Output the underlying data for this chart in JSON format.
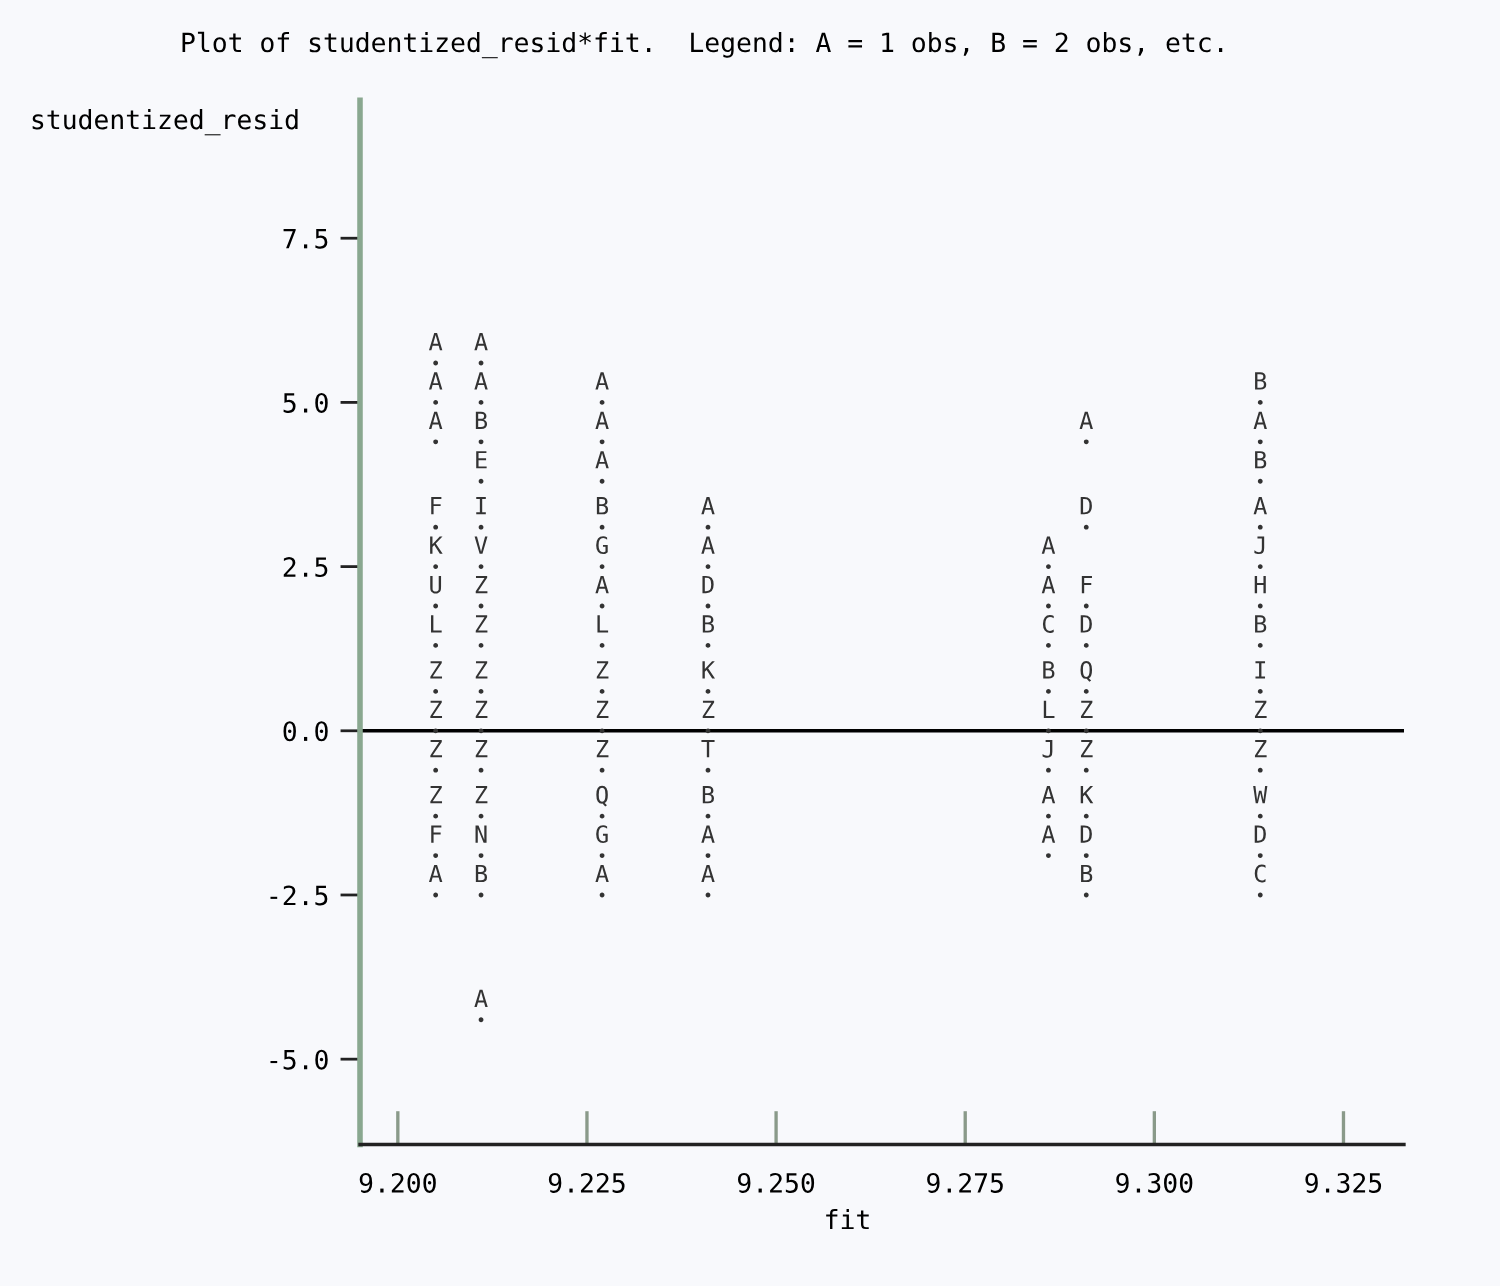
{
  "chart_data": {
    "type": "scatter",
    "title": "Plot of studentized_resid*fit.  Legend: A = 1 obs, B = 2 obs, etc.",
    "xlabel": "fit",
    "ylabel": "studentized_resid",
    "series": [
      {
        "color": "#333333",
        "x": [
          9.205,
          9.205,
          9.205,
          9.205,
          9.205,
          9.205,
          9.205,
          9.205,
          9.205,
          9.205,
          9.205,
          9.205,
          9.205,
          9.211,
          9.211,
          9.211,
          9.211,
          9.211,
          9.211,
          9.211,
          9.211,
          9.211,
          9.211,
          9.211,
          9.211,
          9.211,
          9.211,
          9.211,
          9.227,
          9.227,
          9.227,
          9.227,
          9.227,
          9.227,
          9.227,
          9.227,
          9.227,
          9.227,
          9.227,
          9.227,
          9.227,
          9.241,
          9.241,
          9.241,
          9.241,
          9.241,
          9.241,
          9.241,
          9.241,
          9.241,
          9.241,
          9.286,
          9.286,
          9.286,
          9.286,
          9.286,
          9.286,
          9.286,
          9.286,
          9.291,
          9.291,
          9.291,
          9.291,
          9.291,
          9.291,
          9.291,
          9.291,
          9.291,
          9.291,
          9.314,
          9.314,
          9.314,
          9.314,
          9.314,
          9.314,
          9.314,
          9.314,
          9.314,
          9.314,
          9.314,
          9.314,
          9.314
        ],
        "values": [
          5.6,
          5.0,
          4.4,
          3.1,
          2.5,
          1.9,
          1.3,
          0.6,
          0,
          -0.6,
          -1.3,
          -1.9,
          -2.5,
          5.6,
          5.0,
          4.4,
          3.8,
          3.1,
          2.5,
          1.9,
          1.3,
          0.6,
          0,
          -0.6,
          -1.3,
          -1.9,
          -2.5,
          -4.4,
          5.0,
          4.4,
          3.8,
          3.1,
          2.5,
          1.9,
          1.3,
          0.6,
          0,
          -0.6,
          -1.3,
          -1.9,
          -2.5,
          3.1,
          2.5,
          1.9,
          1.3,
          0.6,
          0,
          -0.6,
          -1.3,
          -1.9,
          -2.5,
          2.5,
          1.9,
          1.3,
          0.6,
          0,
          -0.6,
          -1.3,
          -1.9,
          4.4,
          3.1,
          1.9,
          1.3,
          0.6,
          0,
          -0.6,
          -1.3,
          -1.9,
          -2.5,
          5.0,
          4.4,
          3.8,
          3.1,
          2.5,
          1.9,
          1.3,
          0.6,
          0,
          -0.6,
          -1.3,
          -1.9,
          -2.5
        ],
        "value_labels": [
          "A",
          "A",
          "A",
          "F",
          "K",
          "U",
          "L",
          "Z",
          "Z",
          "Z",
          "Z",
          "F",
          "A",
          "A",
          "A",
          "B",
          "E",
          "I",
          "V",
          "Z",
          "Z",
          "Z",
          "Z",
          "Z",
          "Z",
          "N",
          "B",
          "A",
          "A",
          "A",
          "A",
          "B",
          "G",
          "A",
          "L",
          "Z",
          "Z",
          "Z",
          "Q",
          "G",
          "A",
          "A",
          "A",
          "D",
          "B",
          "K",
          "Z",
          "T",
          "B",
          "A",
          "A",
          "A",
          "A",
          "C",
          "B",
          "L",
          "J",
          "A",
          "A",
          "A",
          "D",
          "F",
          "D",
          "Q",
          "Z",
          "Z",
          "K",
          "D",
          "B",
          "B",
          "A",
          "B",
          "A",
          "J",
          "H",
          "B",
          "I",
          "Z",
          "Z",
          "W",
          "D",
          "C"
        ]
      }
    ],
    "xlim": [
      9.195,
      9.333
    ],
    "xticks": [
      {
        "value": 9.2,
        "label": "9.200"
      },
      {
        "value": 9.225,
        "label": "9.225"
      },
      {
        "value": 9.25,
        "label": "9.250"
      },
      {
        "value": 9.275,
        "label": "9.275"
      },
      {
        "value": 9.3,
        "label": "9.300"
      },
      {
        "value": 9.325,
        "label": "9.325"
      }
    ],
    "ylim": [
      -6.3,
      9.6
    ],
    "yticks": [
      {
        "value": -5,
        "label": "-5.0"
      },
      {
        "value": -2.5,
        "label": "-2.5"
      },
      {
        "value": 0,
        "label": "0.0"
      },
      {
        "value": 2.5,
        "label": "2.5"
      },
      {
        "value": 5,
        "label": "5.0"
      },
      {
        "value": 7.5,
        "label": "7.5"
      }
    ],
    "ref_lines": [
      {
        "axis": "y",
        "value": 0,
        "color": "#000000"
      }
    ],
    "marker": "none",
    "grid": false,
    "legend": false
  }
}
